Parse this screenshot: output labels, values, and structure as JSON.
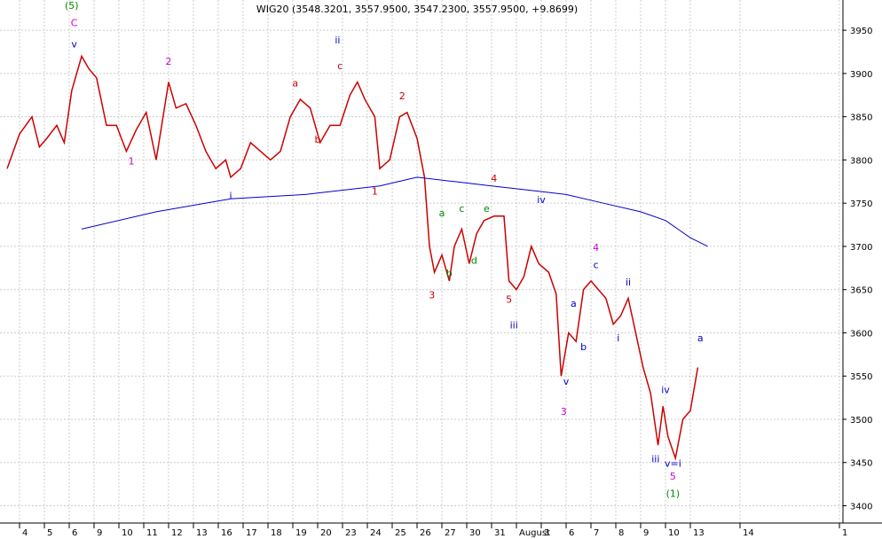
{
  "chart_data": {
    "type": "line",
    "title": "WIG20 (3548.3201, 3557.9500, 3547.2300, 3557.9500, +9.8699)",
    "xlabel": "",
    "ylabel": "",
    "ylim": [
      3380,
      3985
    ],
    "grid": true,
    "yticks": [
      3400,
      3450,
      3500,
      3550,
      3600,
      3650,
      3700,
      3750,
      3800,
      3850,
      3900,
      3950
    ],
    "xticks": [
      {
        "i": 0,
        "label": "4"
      },
      {
        "i": 1,
        "label": "5"
      },
      {
        "i": 2,
        "label": "6"
      },
      {
        "i": 3,
        "label": "9"
      },
      {
        "i": 4,
        "label": "10"
      },
      {
        "i": 5,
        "label": "11"
      },
      {
        "i": 6,
        "label": "12"
      },
      {
        "i": 7,
        "label": "13"
      },
      {
        "i": 8,
        "label": "16"
      },
      {
        "i": 9,
        "label": "17"
      },
      {
        "i": 10,
        "label": "18"
      },
      {
        "i": 11,
        "label": "19"
      },
      {
        "i": 12,
        "label": "20"
      },
      {
        "i": 13,
        "label": "23"
      },
      {
        "i": 14,
        "label": "24"
      },
      {
        "i": 15,
        "label": "25"
      },
      {
        "i": 16,
        "label": "26"
      },
      {
        "i": 17,
        "label": "27"
      },
      {
        "i": 18,
        "label": "30"
      },
      {
        "i": 19,
        "label": "31"
      },
      {
        "i": 20,
        "label": "August"
      },
      {
        "i": 21,
        "label": "3"
      },
      {
        "i": 22,
        "label": "6"
      },
      {
        "i": 23,
        "label": "7"
      },
      {
        "i": 24,
        "label": "8"
      },
      {
        "i": 25,
        "label": "9"
      },
      {
        "i": 26,
        "label": "10"
      },
      {
        "i": 27,
        "label": "13"
      },
      {
        "i": 29,
        "label": "14"
      },
      {
        "i": 33,
        "label": "1"
      }
    ],
    "series": [
      {
        "name": "",
        "color": "#cc0000",
        "values": [
          [
            0.0,
            3790
          ],
          [
            0.5,
            3830
          ],
          [
            1.0,
            3850
          ],
          [
            1.3,
            3815
          ],
          [
            1.6,
            3825
          ],
          [
            2.0,
            3840
          ],
          [
            2.3,
            3820
          ],
          [
            2.6,
            3880
          ],
          [
            3.0,
            3920
          ],
          [
            3.3,
            3905
          ],
          [
            3.6,
            3895
          ],
          [
            4.0,
            3840
          ],
          [
            4.4,
            3840
          ],
          [
            4.8,
            3810
          ],
          [
            5.2,
            3835
          ],
          [
            5.6,
            3855
          ],
          [
            6.0,
            3800
          ],
          [
            6.5,
            3890
          ],
          [
            6.8,
            3860
          ],
          [
            7.2,
            3865
          ],
          [
            7.6,
            3840
          ],
          [
            8.0,
            3810
          ],
          [
            8.4,
            3790
          ],
          [
            8.8,
            3800
          ],
          [
            9.0,
            3780
          ],
          [
            9.4,
            3790
          ],
          [
            9.8,
            3820
          ],
          [
            10.2,
            3810
          ],
          [
            10.6,
            3800
          ],
          [
            11.0,
            3810
          ],
          [
            11.4,
            3850
          ],
          [
            11.8,
            3870
          ],
          [
            12.2,
            3860
          ],
          [
            12.6,
            3820
          ],
          [
            13.0,
            3840
          ],
          [
            13.4,
            3840
          ],
          [
            13.8,
            3875
          ],
          [
            14.1,
            3890
          ],
          [
            14.4,
            3870
          ],
          [
            14.8,
            3850
          ],
          [
            15.0,
            3790
          ],
          [
            15.4,
            3800
          ],
          [
            15.8,
            3850
          ],
          [
            16.1,
            3855
          ],
          [
            16.5,
            3825
          ],
          [
            16.8,
            3780
          ],
          [
            17.0,
            3700
          ],
          [
            17.2,
            3670
          ],
          [
            17.5,
            3690
          ],
          [
            17.8,
            3660
          ],
          [
            18.0,
            3700
          ],
          [
            18.3,
            3720
          ],
          [
            18.6,
            3680
          ],
          [
            18.9,
            3715
          ],
          [
            19.2,
            3730
          ],
          [
            19.6,
            3735
          ],
          [
            20.0,
            3735
          ],
          [
            20.2,
            3660
          ],
          [
            20.5,
            3650
          ],
          [
            20.8,
            3665
          ],
          [
            21.1,
            3700
          ],
          [
            21.4,
            3680
          ],
          [
            21.8,
            3670
          ],
          [
            22.1,
            3645
          ],
          [
            22.3,
            3550
          ],
          [
            22.6,
            3600
          ],
          [
            22.9,
            3590
          ],
          [
            23.2,
            3650
          ],
          [
            23.5,
            3660
          ],
          [
            23.8,
            3650
          ],
          [
            24.1,
            3640
          ],
          [
            24.4,
            3610
          ],
          [
            24.7,
            3620
          ],
          [
            25.0,
            3640
          ],
          [
            25.3,
            3600
          ],
          [
            25.6,
            3560
          ],
          [
            25.9,
            3530
          ],
          [
            26.2,
            3470
          ],
          [
            26.4,
            3515
          ],
          [
            26.6,
            3480
          ],
          [
            26.9,
            3455
          ],
          [
            27.2,
            3500
          ],
          [
            27.5,
            3510
          ],
          [
            27.8,
            3560
          ]
        ]
      },
      {
        "name": "",
        "color": "#0000cc",
        "values": [
          [
            3.0,
            3720
          ],
          [
            6.0,
            3740
          ],
          [
            9.0,
            3755
          ],
          [
            12.0,
            3760
          ],
          [
            15.0,
            3770
          ],
          [
            16.5,
            3780
          ],
          [
            18.0,
            3775
          ],
          [
            19.5,
            3770
          ],
          [
            21.0,
            3765
          ],
          [
            22.5,
            3760
          ],
          [
            24.0,
            3750
          ],
          [
            25.5,
            3740
          ],
          [
            26.5,
            3730
          ],
          [
            27.5,
            3710
          ],
          [
            28.2,
            3700
          ]
        ]
      }
    ],
    "annotations": [
      {
        "text": "(5)",
        "x": 2.6,
        "y": 3975,
        "color": "#008800"
      },
      {
        "text": "C",
        "x": 2.7,
        "y": 3955,
        "color": "#cc00cc"
      },
      {
        "text": "v",
        "x": 2.7,
        "y": 3930,
        "color": "#0000cc"
      },
      {
        "text": "1",
        "x": 5.0,
        "y": 3795,
        "color": "#cc00cc"
      },
      {
        "text": "2",
        "x": 6.5,
        "y": 3910,
        "color": "#cc00cc"
      },
      {
        "text": "i",
        "x": 9.0,
        "y": 3755,
        "color": "#0000cc"
      },
      {
        "text": "a",
        "x": 11.6,
        "y": 3885,
        "color": "#cc0000"
      },
      {
        "text": "b",
        "x": 12.5,
        "y": 3820,
        "color": "#cc0000"
      },
      {
        "text": "ii",
        "x": 13.3,
        "y": 3935,
        "color": "#0000cc"
      },
      {
        "text": "c",
        "x": 13.4,
        "y": 3905,
        "color": "#cc0000"
      },
      {
        "text": "1",
        "x": 14.8,
        "y": 3760,
        "color": "#cc0000"
      },
      {
        "text": "2",
        "x": 15.9,
        "y": 3870,
        "color": "#cc0000"
      },
      {
        "text": "3",
        "x": 17.1,
        "y": 3640,
        "color": "#cc0000"
      },
      {
        "text": "a",
        "x": 17.5,
        "y": 3735,
        "color": "#008800"
      },
      {
        "text": "b",
        "x": 17.8,
        "y": 3665,
        "color": "#008800"
      },
      {
        "text": "c",
        "x": 18.3,
        "y": 3740,
        "color": "#008800"
      },
      {
        "text": "d",
        "x": 18.8,
        "y": 3680,
        "color": "#008800"
      },
      {
        "text": "e",
        "x": 19.3,
        "y": 3740,
        "color": "#008800"
      },
      {
        "text": "4",
        "x": 19.6,
        "y": 3775,
        "color": "#cc0000"
      },
      {
        "text": "5",
        "x": 20.2,
        "y": 3635,
        "color": "#cc0000"
      },
      {
        "text": "iii",
        "x": 20.4,
        "y": 3605,
        "color": "#0000cc"
      },
      {
        "text": "iv",
        "x": 21.5,
        "y": 3750,
        "color": "#0000cc"
      },
      {
        "text": "a",
        "x": 22.8,
        "y": 3630,
        "color": "#0000cc"
      },
      {
        "text": "v",
        "x": 22.5,
        "y": 3540,
        "color": "#0000cc"
      },
      {
        "text": "3",
        "x": 22.4,
        "y": 3505,
        "color": "#cc00cc"
      },
      {
        "text": "b",
        "x": 23.2,
        "y": 3580,
        "color": "#0000cc"
      },
      {
        "text": "4",
        "x": 23.7,
        "y": 3695,
        "color": "#cc00cc"
      },
      {
        "text": "c",
        "x": 23.7,
        "y": 3675,
        "color": "#0000cc"
      },
      {
        "text": "i",
        "x": 24.6,
        "y": 3590,
        "color": "#0000cc"
      },
      {
        "text": "ii",
        "x": 25.0,
        "y": 3655,
        "color": "#0000cc"
      },
      {
        "text": "iv",
        "x": 26.5,
        "y": 3530,
        "color": "#0000cc"
      },
      {
        "text": "iii",
        "x": 26.1,
        "y": 3450,
        "color": "#0000cc"
      },
      {
        "text": "v=i",
        "x": 26.8,
        "y": 3445,
        "color": "#0000cc"
      },
      {
        "text": "5",
        "x": 26.8,
        "y": 3430,
        "color": "#cc00cc"
      },
      {
        "text": "(1)",
        "x": 26.8,
        "y": 3410,
        "color": "#008800"
      },
      {
        "text": "a",
        "x": 27.9,
        "y": 3590,
        "color": "#0000cc"
      }
    ]
  }
}
